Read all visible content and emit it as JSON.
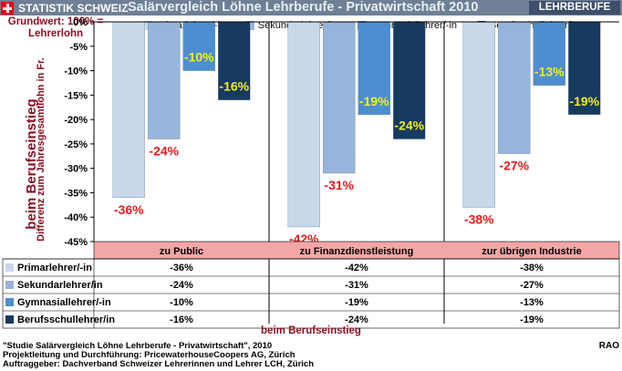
{
  "header": {
    "brand": "STATISTIK SCHWEIZ",
    "title": "Salärvergleich Löhne Lehrberufe - Privatwirtschaft 2010",
    "section": "LEHRBERUFE"
  },
  "basis_note": "Grundwert: 100% = Lehrerlohn",
  "colors": {
    "topbar": "#6f7f95",
    "accent_red": "#8b1026",
    "negative_label": "#e31d1d",
    "positive_label": "#f2ee1c",
    "category_band": "#f4a6a6"
  },
  "chart_data": {
    "type": "bar",
    "ylabel": "Differenz zum Jahresgesamtlohn in Fr.",
    "side_label": "beim Berufseinstieg",
    "xlabel": "beim Berufseinstieg",
    "ylim": [
      -45,
      0
    ],
    "yticks": [
      "0%",
      "-5%",
      "-10%",
      "-15%",
      "-20%",
      "-25%",
      "-30%",
      "-35%",
      "-40%",
      "-45%"
    ],
    "categories": [
      "zu Public",
      "zu Finanzdienstleistung",
      "zur übrigen Industrie"
    ],
    "series": [
      {
        "name": "Primarlehrer/-in",
        "color": "#c8d8ea",
        "values": [
          -36,
          -42,
          -38
        ],
        "labels": [
          "-36%",
          "-42%",
          "-38%"
        ]
      },
      {
        "name": "Sekundarlehrer/in",
        "color": "#96b4dc",
        "values": [
          -24,
          -31,
          -27
        ],
        "labels": [
          "-24%",
          "-31%",
          "-27%"
        ]
      },
      {
        "name": "Gymnasiallehrer/-in",
        "color": "#4d8ed0",
        "values": [
          -10,
          -19,
          -13
        ],
        "labels": [
          "-10%",
          "-19%",
          "-13%"
        ]
      },
      {
        "name": "Berufsschullehrer/in",
        "color": "#173a5f",
        "values": [
          -16,
          -24,
          -19
        ],
        "labels": [
          "-16%",
          "-24%",
          "-19%"
        ]
      }
    ],
    "table": {
      "rows": [
        {
          "label": "Primarlehrer/-in",
          "cells": [
            "-36%",
            "-42%",
            "-38%"
          ]
        },
        {
          "label": "Sekundarlehrer/in",
          "cells": [
            "-24%",
            "-31%",
            "-27%"
          ]
        },
        {
          "label": "Gymnasiallehrer/-in",
          "cells": [
            "-10%",
            "-19%",
            "-13%"
          ]
        },
        {
          "label": "Berufsschullehrer/in",
          "cells": [
            "-16%",
            "-24%",
            "-19%"
          ]
        }
      ]
    },
    "grid": false,
    "legend": "top"
  },
  "footer": {
    "line1": "\"Studie Salärvergleich Löhne Lehrberufe - Privatwirtschaft\", 2010",
    "line2": "Projektleitung und Durchführung: PricewaterhouseCoopers AG, Zürich",
    "line3": "Auftraggeber: Dachverband Schweizer Lehrerinnen und Lehrer LCH, Zürich",
    "tag": "RAO"
  }
}
